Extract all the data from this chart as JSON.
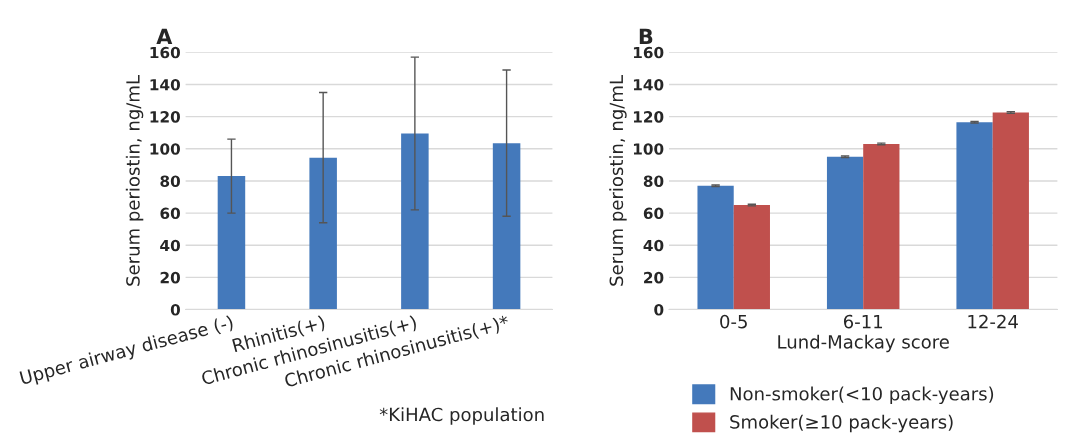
{
  "chart_data": [
    {
      "type": "bar",
      "title": "A",
      "ylabel": "Serum periostin, ng/mL",
      "categories": [
        "Upper airway disease (-)",
        "Rhinitis(+)",
        "Chronic rhinosinusitis(+)",
        "Chronic rhinosinusitis(+)*"
      ],
      "series": [
        {
          "color": "#4479bb",
          "values": [
            83,
            94.5,
            109.5,
            103.5
          ],
          "errors": [
            [
              60,
              106
            ],
            [
              54,
              135
            ],
            [
              62,
              157
            ],
            [
              58,
              149
            ]
          ]
        }
      ],
      "ylim": [
        0,
        160
      ],
      "yticks": [
        0,
        20,
        40,
        60,
        80,
        100,
        120,
        140,
        160
      ],
      "grid": "y",
      "legend": false,
      "annotations": [
        "*KiHAC population"
      ]
    },
    {
      "type": "bar",
      "title": "B",
      "ylabel": "Serum periostin, ng/mL",
      "xlabel": "Lund-Mackay score",
      "categories": [
        "0-5",
        "6-11",
        "12-24"
      ],
      "series": [
        {
          "name": "Non-smoker(<10 pack-years)",
          "color": "#4479bb",
          "values": [
            77,
            95,
            116.5
          ],
          "errors": [
            0.5,
            0.5,
            0.5
          ]
        },
        {
          "name": "Smoker(≥10 pack-years)",
          "color": "#c0504d",
          "values": [
            65,
            103,
            122.5
          ],
          "errors": [
            0.5,
            0.5,
            0.5
          ]
        }
      ],
      "ylim": [
        0,
        160
      ],
      "yticks": [
        0,
        20,
        40,
        60,
        80,
        100,
        120,
        140,
        160
      ],
      "grid": "y",
      "legend": "bottom"
    }
  ]
}
